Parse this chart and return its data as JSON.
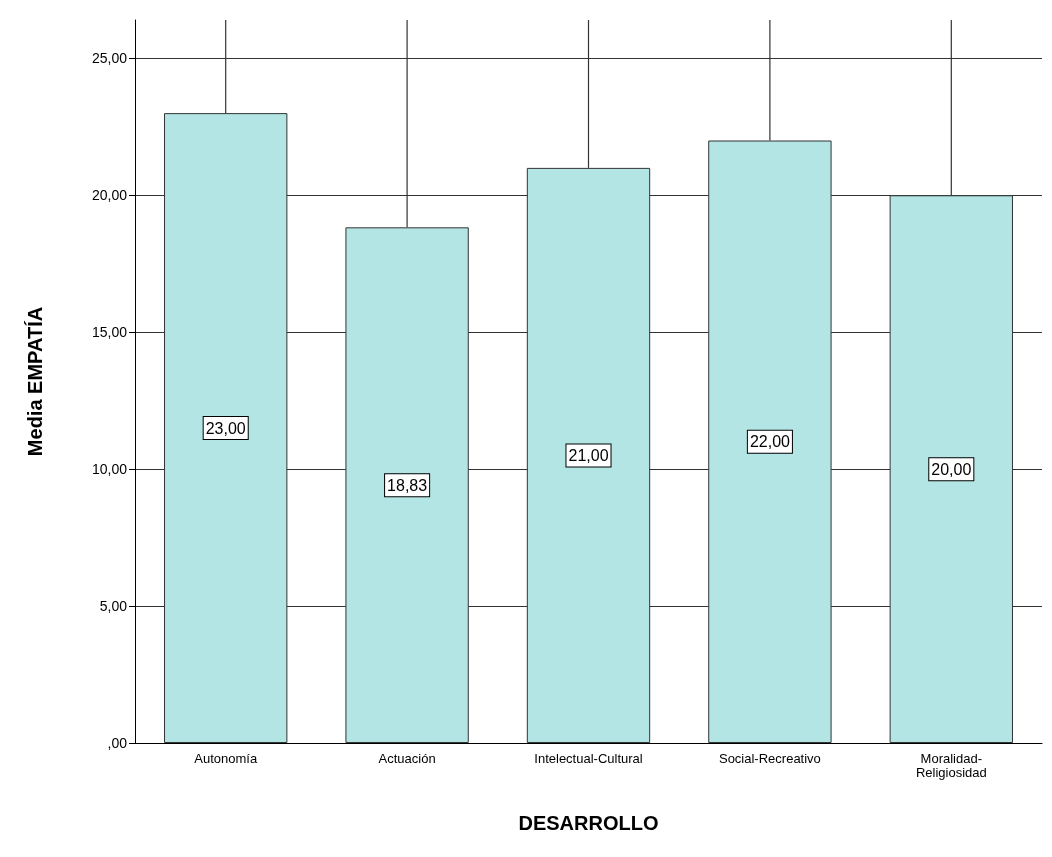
{
  "chart_data": {
    "type": "bar",
    "xlabel": "DESARROLLO",
    "ylabel": "Media EMPATÍA",
    "categories": [
      "Autonomía",
      "Actuación",
      "Intelectual-Cultural",
      "Social-Recreativo",
      "Moralidad-\nReligiosidad"
    ],
    "values": [
      23.0,
      18.83,
      21.0,
      22.0,
      20.0
    ],
    "value_labels": [
      "23,00",
      "18,83",
      "21,00",
      "22,00",
      "20,00"
    ],
    "errors": [
      [
        23.0,
        26.4
      ],
      [
        18.83,
        26.4
      ],
      [
        21.0,
        26.4
      ],
      [
        22.0,
        26.4
      ],
      [
        20.0,
        26.4
      ]
    ],
    "color": "#b3e5e5",
    "ylim": [
      0,
      26.4
    ],
    "yticks": [
      {
        "value": 0,
        "label": ",00"
      },
      {
        "value": 5,
        "label": "5,00"
      },
      {
        "value": 10,
        "label": "10,00"
      },
      {
        "value": 15,
        "label": "15,00"
      },
      {
        "value": 20,
        "label": "20,00"
      },
      {
        "value": 25,
        "label": "25,00"
      }
    ],
    "grid": "y"
  }
}
